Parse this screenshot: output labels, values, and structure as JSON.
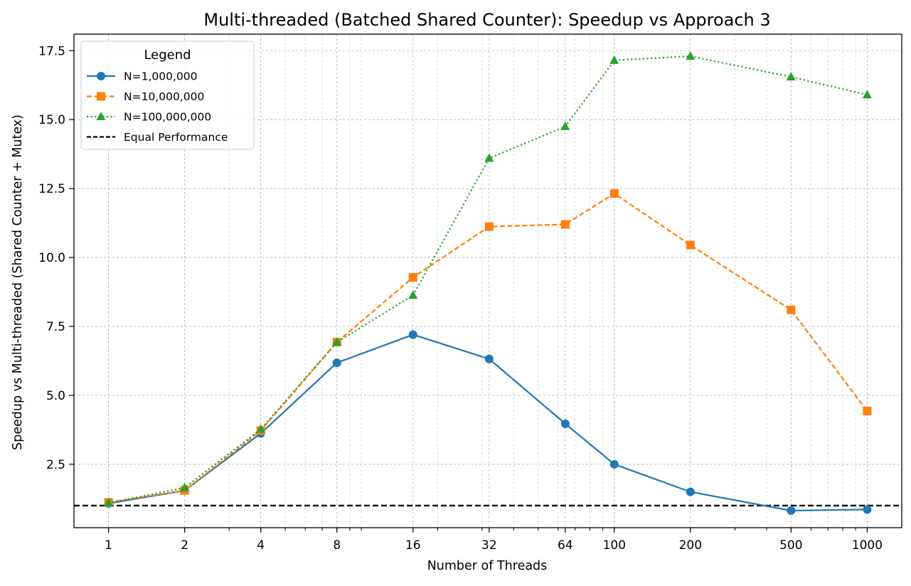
{
  "chart_data": {
    "type": "line",
    "title": "Multi-threaded (Batched Shared Counter): Speedup vs Approach 3",
    "xlabel": "Number of Threads",
    "ylabel": "Speedup vs Multi-threaded (Shared Counter + Mutex)",
    "x_scale": "log",
    "xlim": [
      0.73,
      1370
    ],
    "ylim": [
      0.2,
      18.1
    ],
    "x": [
      1,
      2,
      4,
      8,
      16,
      32,
      64,
      100,
      200,
      500,
      1000
    ],
    "x_tick_labels": [
      "1",
      "2",
      "4",
      "8",
      "16",
      "32",
      "64",
      "100",
      "200",
      "500",
      "1000"
    ],
    "y_ticks": [
      2.5,
      5.0,
      7.5,
      10.0,
      12.5,
      15.0,
      17.5
    ],
    "y_tick_labels": [
      "2.5",
      "5.0",
      "7.5",
      "10.0",
      "12.5",
      "15.0",
      "17.5"
    ],
    "grid": true,
    "legend": {
      "title": "Legend",
      "position": "top-left"
    },
    "series": [
      {
        "name": "N=1,000,000",
        "color": "#1f77b4",
        "line_style": "solid",
        "marker": "circle",
        "values": [
          1.08,
          1.55,
          3.62,
          6.18,
          7.2,
          6.32,
          3.97,
          2.5,
          1.5,
          0.82,
          0.86
        ]
      },
      {
        "name": "N=10,000,000",
        "color": "#ff7f0e",
        "line_style": "dashed",
        "marker": "square",
        "values": [
          1.12,
          1.55,
          3.72,
          6.93,
          9.28,
          11.12,
          11.2,
          12.32,
          10.45,
          8.1,
          4.43
        ]
      },
      {
        "name": "N=100,000,000",
        "color": "#2ca02c",
        "line_style": "dotted",
        "marker": "triangle",
        "values": [
          1.1,
          1.65,
          3.77,
          6.93,
          8.63,
          13.6,
          14.75,
          17.15,
          17.3,
          16.55,
          15.9
        ]
      }
    ],
    "reference_line": {
      "name": "Equal Performance",
      "y": 1.0,
      "color": "#000000",
      "line_style": "dashed"
    }
  }
}
